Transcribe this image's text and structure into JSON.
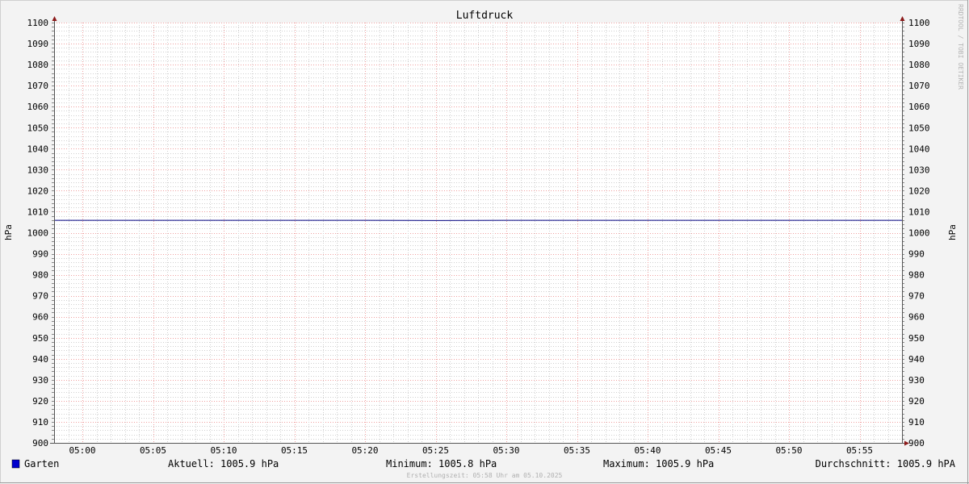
{
  "chart_data": {
    "type": "line",
    "title": "Luftdruck",
    "ylabel": "hPa",
    "ylabel_right": "hPa",
    "ylim": [
      900,
      1100
    ],
    "xlim": [
      "04:58",
      "05:58"
    ],
    "y_ticks": [
      "900",
      "910",
      "920",
      "930",
      "940",
      "950",
      "960",
      "970",
      "980",
      "990",
      "1000",
      "1010",
      "1020",
      "1030",
      "1040",
      "1050",
      "1060",
      "1070",
      "1080",
      "1090",
      "1100"
    ],
    "x_ticks": [
      "05:00",
      "05:05",
      "05:10",
      "05:15",
      "05:20",
      "05:25",
      "05:30",
      "05:35",
      "05:40",
      "05:45",
      "05:50",
      "05:55"
    ],
    "grid": true,
    "watermark": "RRDTOOL / TOBI OETIKER",
    "series": [
      {
        "name": "Garten",
        "color": "#000080",
        "legend_color": "#0000cc",
        "x": [
          "04:58",
          "05:05",
          "05:10",
          "05:15",
          "05:20",
          "05:25",
          "05:30",
          "05:35",
          "05:40",
          "05:45",
          "05:50",
          "05:55",
          "05:58"
        ],
        "values": [
          1005.9,
          1005.9,
          1005.9,
          1005.9,
          1005.9,
          1005.8,
          1005.9,
          1005.9,
          1005.9,
          1005.9,
          1005.9,
          1005.9,
          1005.9
        ]
      }
    ],
    "legend": {
      "name": "Garten",
      "current": "Aktuell: 1005.9 hPa",
      "minimum": "Minimum: 1005.8 hPa",
      "maximum": "Maximum: 1005.9 hPa",
      "average": "Durchschnitt: 1005.9 hPA"
    },
    "footer": "Erstellungszeit: 05:58 Uhr am 05.10.2025"
  }
}
